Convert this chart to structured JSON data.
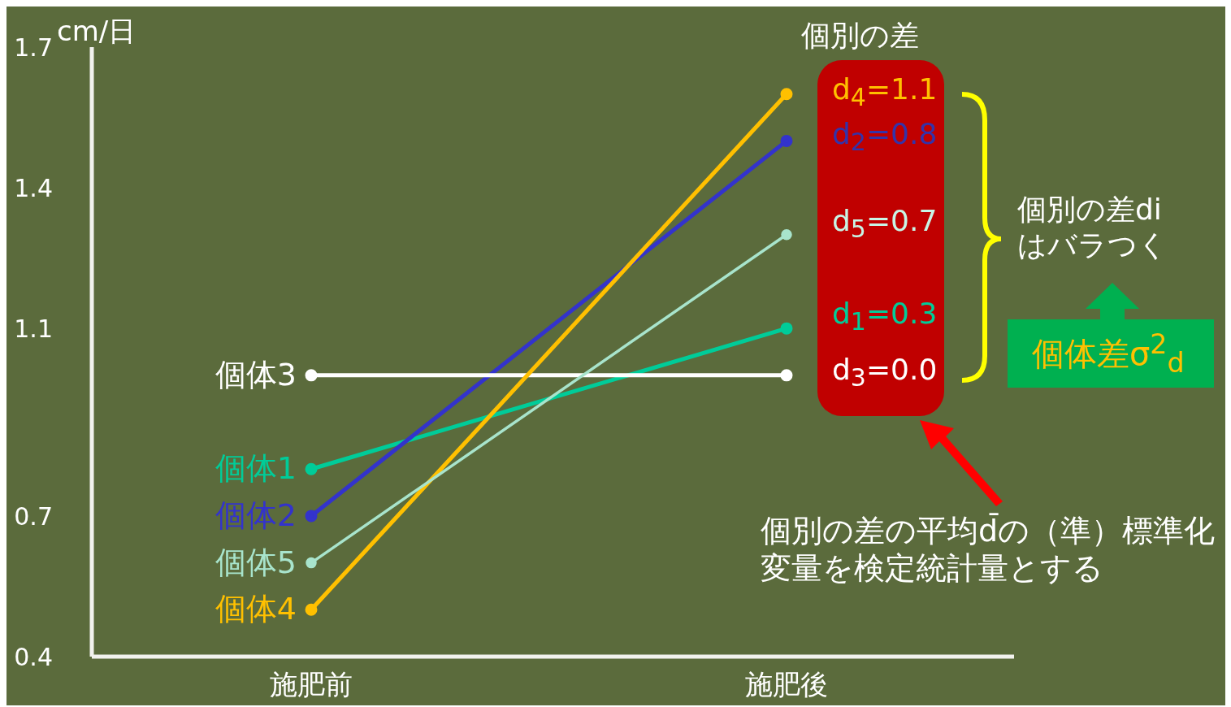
{
  "chart_data": {
    "type": "line",
    "ylabel": "cm/日",
    "categories": [
      "施肥前",
      "施肥後"
    ],
    "series": [
      {
        "name": "個体1",
        "color": "#00cc99",
        "values": [
          0.8,
          1.1
        ]
      },
      {
        "name": "個体2",
        "color": "#3333cc",
        "values": [
          0.7,
          1.5
        ]
      },
      {
        "name": "個体3",
        "color": "#ffffff",
        "values": [
          1.0,
          1.0
        ]
      },
      {
        "name": "個体4",
        "color": "#ffc000",
        "values": [
          0.5,
          1.6
        ]
      },
      {
        "name": "個体5",
        "color": "#a8e4cc",
        "values": [
          0.6,
          1.3
        ]
      }
    ],
    "ylim": [
      0.4,
      1.7
    ],
    "yticks": [
      0.4,
      0.7,
      1.1,
      1.4,
      1.7
    ],
    "grid": false,
    "legend": false,
    "marker": "circle",
    "line_style": "solid",
    "annotations": [
      "個別の差",
      "d$_{4}$=1.1",
      "d$_{2}$=0.8",
      "d$_{5}$=0.7",
      "d$_{1}$=0.3",
      "d$_{3}$=0.0",
      "個別の差di\nはバラつく",
      "個体差σ$^{2}$$_{d}$",
      "個別の差の平均d̄の（準）標準化変量を検定統計量とする"
    ]
  }
}
